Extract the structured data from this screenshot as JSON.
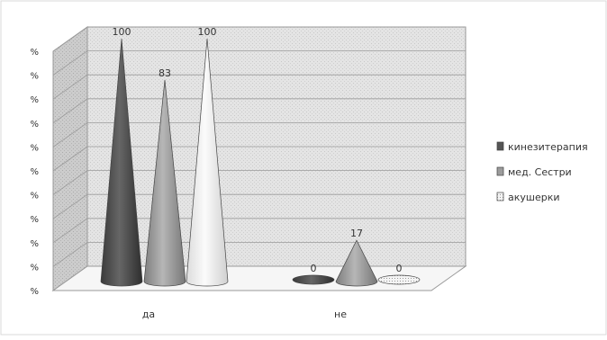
{
  "chart_data": {
    "type": "bar",
    "style": "3d-cone",
    "categories": [
      "да",
      "не"
    ],
    "series": [
      {
        "name": "кинезитерапия",
        "values": [
          100,
          0
        ],
        "color": "#555555"
      },
      {
        "name": "мед. Сестри",
        "values": [
          83,
          17
        ],
        "color": "#9c9c9c"
      },
      {
        "name": "акушерки",
        "values": [
          100,
          0
        ],
        "color": "#e8e8e8"
      }
    ],
    "y_tick_labels": [
      "%",
      "%",
      "%",
      "%",
      "%",
      "%",
      "%",
      "%",
      "%",
      "%",
      "%"
    ],
    "ylim": [
      0,
      100
    ],
    "grid": true,
    "legend_position": "right",
    "title": "",
    "xlabel": "",
    "ylabel": ""
  }
}
